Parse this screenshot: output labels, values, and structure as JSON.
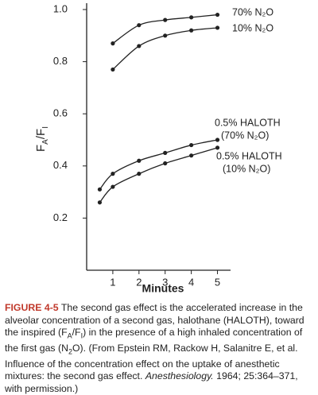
{
  "chart_data": {
    "type": "line",
    "y_label": [
      {
        "text": "F"
      },
      {
        "text": "A",
        "style": "sub"
      },
      {
        "text": "/F"
      },
      {
        "text": "I",
        "style": "sub"
      }
    ],
    "x_label": "Minutes",
    "xlim": [
      0,
      5.5
    ],
    "xticks": [
      1,
      2,
      3,
      4,
      5
    ],
    "ylim": [
      0,
      1.0
    ],
    "yticks": [
      {
        "value": 1.0,
        "label": "1.0"
      },
      0.8,
      0.6,
      0.4,
      0.2
    ],
    "color": "#222222",
    "series": [
      {
        "label": [
          "70% N₂O"
        ],
        "x": [
          1,
          2,
          3,
          4,
          5
        ],
        "values": [
          0.87,
          0.94,
          0.96,
          0.97,
          0.98
        ]
      },
      {
        "label": [
          "10% N₂O"
        ],
        "x": [
          1,
          2,
          3,
          4,
          5
        ],
        "values": [
          0.77,
          0.86,
          0.9,
          0.92,
          0.93
        ]
      },
      {
        "label": [
          "0.5% HALOTH",
          "(70% N₂O)"
        ],
        "x": [
          0.5,
          1,
          2,
          3,
          4,
          5
        ],
        "values": [
          0.31,
          0.37,
          0.42,
          0.45,
          0.48,
          0.5
        ]
      },
      {
        "label": [
          "0.5% HALOTH",
          "(10% N₂O)"
        ],
        "x": [
          0.5,
          1,
          2,
          3,
          4,
          5
        ],
        "values": [
          0.26,
          0.32,
          0.37,
          0.41,
          0.44,
          0.47
        ]
      }
    ]
  },
  "caption": {
    "label": "FIGURE 4-5",
    "label_color": "#c0392b",
    "parts": [
      {
        "text": " The second gas effect is the accelerated increase in the alveolar concentration of a second gas, halothane (HALOTH), toward the inspired (F"
      },
      {
        "text": "A",
        "style": "sub"
      },
      {
        "text": "/F"
      },
      {
        "text": "I",
        "style": "sub"
      },
      {
        "text": ") in the presence of a high inhaled concentration of the first gas (N"
      },
      {
        "text": "2",
        "style": "sub"
      },
      {
        "text": "O). (From Epstein RM, Rackow H, Salanitre E, et al. Influence of the concentration effect on the uptake of anesthetic mixtures: the second gas effect. "
      },
      {
        "text": "Anesthesiology.",
        "style": "italic"
      },
      {
        "text": " 1964; 25:364–371, with permission.)"
      }
    ]
  }
}
